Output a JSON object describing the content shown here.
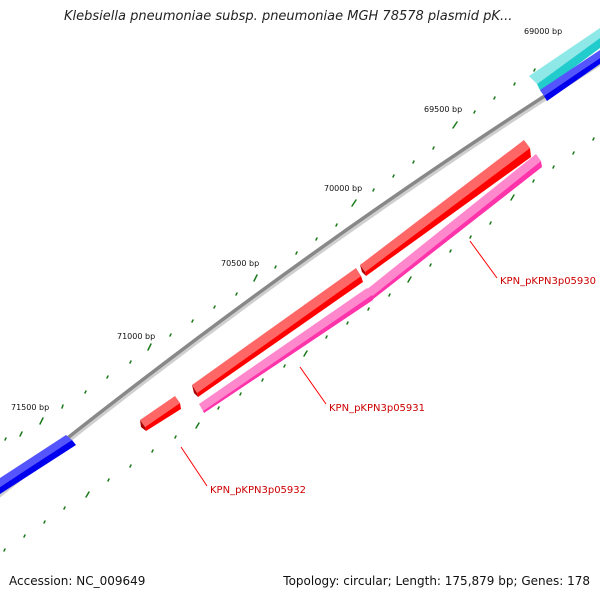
{
  "title": "Klebsiella pneumoniae subsp. pneumoniae MGH 78578 plasmid pK...",
  "footer": {
    "accession": "Accession: NC_009649",
    "summary": "Topology: circular; Length: 175,879 bp; Genes: 178"
  },
  "ticks": [
    {
      "label": "69000 bp"
    },
    {
      "label": "69500 bp"
    },
    {
      "label": "70000 bp"
    },
    {
      "label": "70500 bp"
    },
    {
      "label": "71000 bp"
    },
    {
      "label": "71500 bp"
    }
  ],
  "genes": [
    {
      "name": "KPN_pKPN3p05930",
      "color": "#ff0000",
      "strand": "forward"
    },
    {
      "name": "KPN_pKPN3p05931",
      "color": "#ff0000",
      "strand": "forward"
    },
    {
      "name": "KPN_pKPN3p05932",
      "color": "#ff0000",
      "strand": "forward"
    }
  ],
  "features": [
    {
      "name": "cyan-feature",
      "color": "#22cccc"
    },
    {
      "name": "blue-feature-top",
      "color": "#0000ee"
    },
    {
      "name": "magenta-feature-long",
      "color": "#ff33aa"
    },
    {
      "name": "magenta-feature-short",
      "color": "#ff33aa"
    },
    {
      "name": "blue-feature-bottom",
      "color": "#0000ee"
    }
  ],
  "colors": {
    "backbone": "#888888",
    "tick_mark": "#1a7a1a",
    "label_line": "#ff0000"
  }
}
